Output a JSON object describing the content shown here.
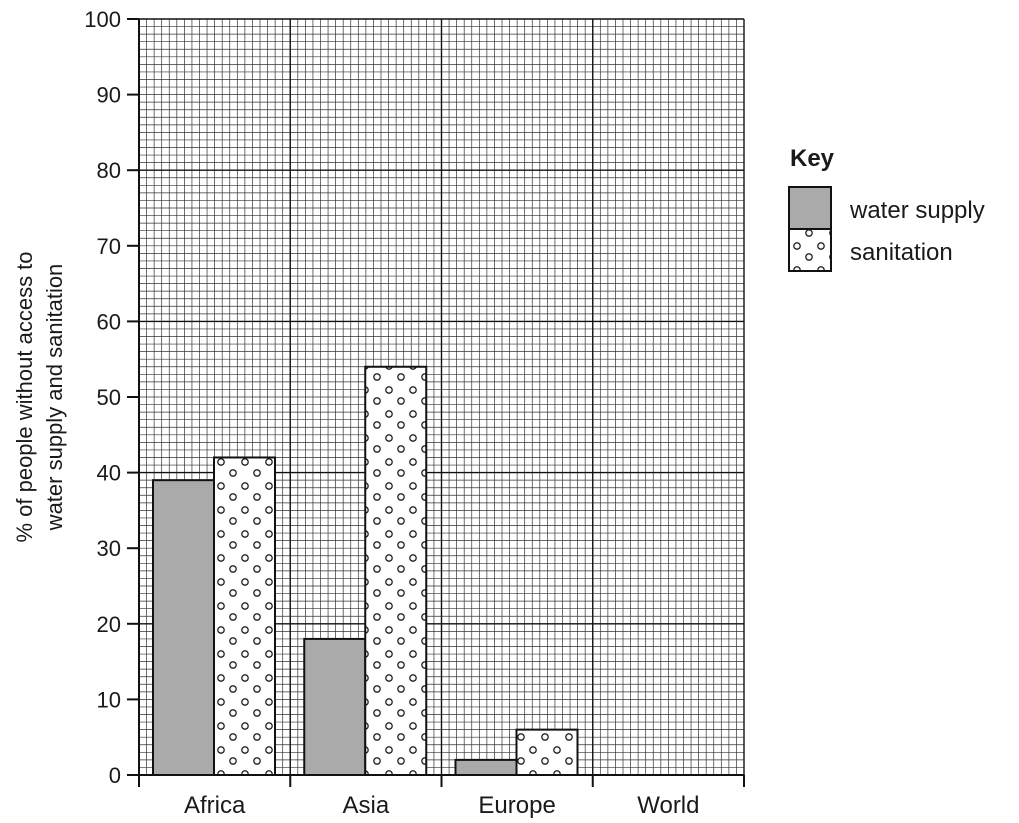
{
  "chart_data": {
    "type": "bar",
    "categories": [
      "Africa",
      "Asia",
      "Europe",
      "World"
    ],
    "series": [
      {
        "name": "water supply",
        "values": [
          39,
          18,
          2,
          null
        ],
        "fill": "#aaaaaa",
        "pattern": "solid"
      },
      {
        "name": "sanitation",
        "values": [
          42,
          54,
          6,
          null
        ],
        "fill": "#ffffff",
        "pattern": "dots"
      }
    ],
    "ylabel_line1": "% of people without access to",
    "ylabel_line2": "water supply and sanitation",
    "ylim": [
      0,
      100
    ],
    "yticks": [
      0,
      10,
      20,
      30,
      40,
      50,
      60,
      70,
      80,
      90,
      100
    ],
    "grid": true,
    "legend": {
      "title": "Key",
      "placement": "right"
    }
  }
}
